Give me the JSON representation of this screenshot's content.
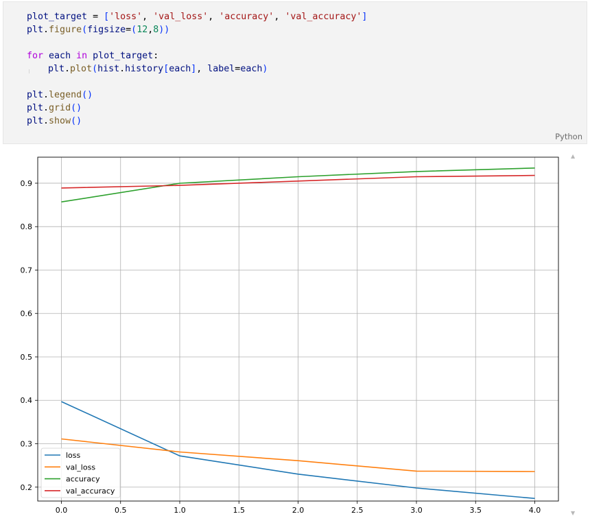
{
  "code_cell": {
    "language_label": "Python",
    "lines": [
      [
        [
          "var",
          "plot_target"
        ],
        [
          "op",
          " = "
        ],
        [
          "br",
          "["
        ],
        [
          "str",
          "'loss'"
        ],
        [
          "op",
          ", "
        ],
        [
          "str",
          "'val_loss'"
        ],
        [
          "op",
          ", "
        ],
        [
          "str",
          "'accuracy'"
        ],
        [
          "op",
          ", "
        ],
        [
          "str",
          "'val_accuracy'"
        ],
        [
          "br",
          "]"
        ]
      ],
      [
        [
          "var",
          "plt"
        ],
        [
          "op",
          "."
        ],
        [
          "fn",
          "figure"
        ],
        [
          "br",
          "("
        ],
        [
          "var",
          "figsize"
        ],
        [
          "op",
          "="
        ],
        [
          "br",
          "("
        ],
        [
          "num",
          "12"
        ],
        [
          "op",
          ","
        ],
        [
          "num",
          "8"
        ],
        [
          "br",
          "))"
        ]
      ],
      [],
      [
        [
          "kw",
          "for"
        ],
        [
          "op",
          " "
        ],
        [
          "var",
          "each"
        ],
        [
          "op",
          " "
        ],
        [
          "kw",
          "in"
        ],
        [
          "op",
          " "
        ],
        [
          "var",
          "plot_target"
        ],
        [
          "op",
          ":"
        ]
      ],
      [
        [
          "indent",
          ""
        ],
        [
          "var",
          "plt"
        ],
        [
          "op",
          "."
        ],
        [
          "fn",
          "plot"
        ],
        [
          "br",
          "("
        ],
        [
          "var",
          "hist"
        ],
        [
          "op",
          "."
        ],
        [
          "var",
          "history"
        ],
        [
          "br",
          "["
        ],
        [
          "var",
          "each"
        ],
        [
          "br",
          "]"
        ],
        [
          "op",
          ", "
        ],
        [
          "var",
          "label"
        ],
        [
          "op",
          "="
        ],
        [
          "var",
          "each"
        ],
        [
          "br",
          ")"
        ]
      ],
      [],
      [
        [
          "var",
          "plt"
        ],
        [
          "op",
          "."
        ],
        [
          "fn",
          "legend"
        ],
        [
          "br",
          "()"
        ]
      ],
      [
        [
          "var",
          "plt"
        ],
        [
          "op",
          "."
        ],
        [
          "fn",
          "grid"
        ],
        [
          "br",
          "()"
        ]
      ],
      [
        [
          "var",
          "plt"
        ],
        [
          "op",
          "."
        ],
        [
          "fn",
          "show"
        ],
        [
          "br",
          "()"
        ]
      ]
    ]
  },
  "chart_data": {
    "type": "line",
    "x": [
      0,
      1,
      2,
      3,
      4
    ],
    "series": [
      {
        "name": "loss",
        "color": "#1f77b4",
        "values": [
          0.397,
          0.272,
          0.23,
          0.198,
          0.174
        ]
      },
      {
        "name": "val_loss",
        "color": "#ff7f0e",
        "values": [
          0.311,
          0.281,
          0.261,
          0.237,
          0.236
        ]
      },
      {
        "name": "accuracy",
        "color": "#2ca02c",
        "values": [
          0.857,
          0.9,
          0.915,
          0.927,
          0.935
        ]
      },
      {
        "name": "val_accuracy",
        "color": "#d62728",
        "values": [
          0.889,
          0.895,
          0.905,
          0.915,
          0.918
        ]
      }
    ],
    "xlim": [
      -0.2,
      4.2
    ],
    "ylim": [
      0.168,
      0.96
    ],
    "xticks": [
      0.0,
      0.5,
      1.0,
      1.5,
      2.0,
      2.5,
      3.0,
      3.5,
      4.0
    ],
    "xtick_labels": [
      "0.0",
      "0.5",
      "1.0",
      "1.5",
      "2.0",
      "2.5",
      "3.0",
      "3.5",
      "4.0"
    ],
    "yticks": [
      0.2,
      0.3,
      0.4,
      0.5,
      0.6,
      0.7,
      0.8,
      0.9
    ],
    "ytick_labels": [
      "0.2",
      "0.3",
      "0.4",
      "0.5",
      "0.6",
      "0.7",
      "0.8",
      "0.9"
    ],
    "grid": true,
    "legend_position": "lower-left",
    "title": "",
    "xlabel": "",
    "ylabel": ""
  },
  "output_scroll": {
    "up_icon": "▲",
    "down_icon": "▼"
  }
}
